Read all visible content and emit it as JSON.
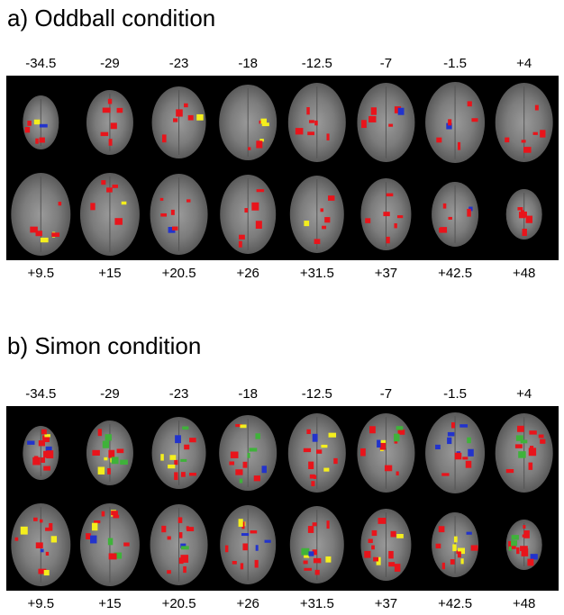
{
  "panels": [
    {
      "title": "a) Oddball condition",
      "top_labels": [
        "-34.5",
        "-29",
        "-23",
        "-18",
        "-12.5",
        "-7",
        "-1.5",
        "+4"
      ],
      "bottom_labels": [
        "+9.5",
        "+15",
        "+20.5",
        "+26",
        "+31.5",
        "+37",
        "+42.5",
        "+48"
      ]
    },
    {
      "title": "b) Simon condition",
      "top_labels": [
        "-34.5",
        "-29",
        "-23",
        "-18",
        "-12.5",
        "-7",
        "-1.5",
        "+4"
      ],
      "bottom_labels": [
        "+9.5",
        "+15",
        "+20.5",
        "+26",
        "+31.5",
        "+37",
        "+42.5",
        "+48"
      ]
    }
  ]
}
